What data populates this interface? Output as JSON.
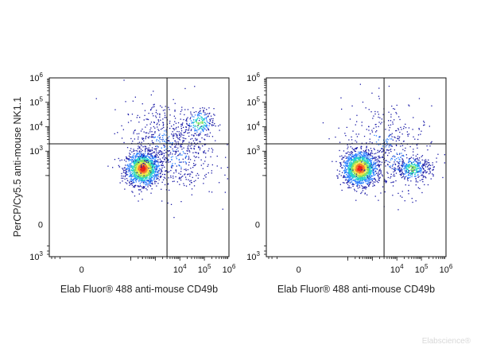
{
  "chart_data": [
    {
      "type": "scatter",
      "title": "",
      "xlabel": "Elab Fluor® 488 anti-mouse CD49b",
      "ylabel": "PerCP/Cy5.5 anti-mouse NK1.1",
      "scale": "biexponential",
      "x_ticks": [
        {
          "label": "0",
          "sup": ""
        },
        {
          "label": "10",
          "sup": "4"
        },
        {
          "label": "10",
          "sup": "5"
        },
        {
          "label": "10",
          "sup": "6"
        }
      ],
      "y_ticks": [
        {
          "label": "10",
          "sup": "6"
        },
        {
          "label": "10",
          "sup": "5"
        },
        {
          "label": "10",
          "sup": "4"
        },
        {
          "label": "10",
          "sup": "3"
        },
        {
          "label": "0",
          "sup": ""
        },
        {
          "label": "10",
          "sup": "3"
        }
      ],
      "quadrant_gate": {
        "x": 3000,
        "y": 2000
      },
      "populations": [
        {
          "center": [
            300,
            200
          ],
          "spread": "high density",
          "share": 0.62
        },
        {
          "center": [
            60000,
            15000
          ],
          "spread": "medium",
          "share": 0.09
        },
        {
          "center": [
            2000,
            3000
          ],
          "spread": "diffuse",
          "share": 0.18
        },
        {
          "center": [
            8000,
            500
          ],
          "spread": "diffuse",
          "share": 0.11
        }
      ],
      "colormap": [
        "#1a1aa6",
        "#2a7fff",
        "#26d0ce",
        "#7ee05a",
        "#f4e64a",
        "#f47a2a",
        "#e8201a"
      ],
      "grid": false,
      "legend": "none"
    },
    {
      "type": "scatter",
      "title": "",
      "xlabel": "Elab Fluor® 488 anti-mouse CD49b",
      "ylabel": "",
      "scale": "biexponential",
      "x_ticks": [
        {
          "label": "0",
          "sup": ""
        },
        {
          "label": "10",
          "sup": "4"
        },
        {
          "label": "10",
          "sup": "5"
        },
        {
          "label": "10",
          "sup": "6"
        }
      ],
      "y_ticks": [
        {
          "label": "10",
          "sup": "6"
        },
        {
          "label": "10",
          "sup": "5"
        },
        {
          "label": "10",
          "sup": "4"
        },
        {
          "label": "10",
          "sup": "3"
        },
        {
          "label": "0",
          "sup": ""
        },
        {
          "label": "10",
          "sup": "3"
        }
      ],
      "quadrant_gate": {
        "x": 3000,
        "y": 2000
      },
      "populations": [
        {
          "center": [
            300,
            200
          ],
          "spread": "high density",
          "share": 0.66
        },
        {
          "center": [
            40000,
            200
          ],
          "spread": "medium",
          "share": 0.16
        },
        {
          "center": [
            2500,
            3000
          ],
          "spread": "diffuse",
          "share": 0.1
        },
        {
          "center": [
            10000,
            400
          ],
          "spread": "diffuse",
          "share": 0.08
        }
      ],
      "colormap": [
        "#1a1aa6",
        "#2a7fff",
        "#26d0ce",
        "#7ee05a",
        "#f4e64a",
        "#f47a2a",
        "#e8201a"
      ],
      "grid": false,
      "legend": "none"
    }
  ],
  "watermark": "Elabscience®"
}
